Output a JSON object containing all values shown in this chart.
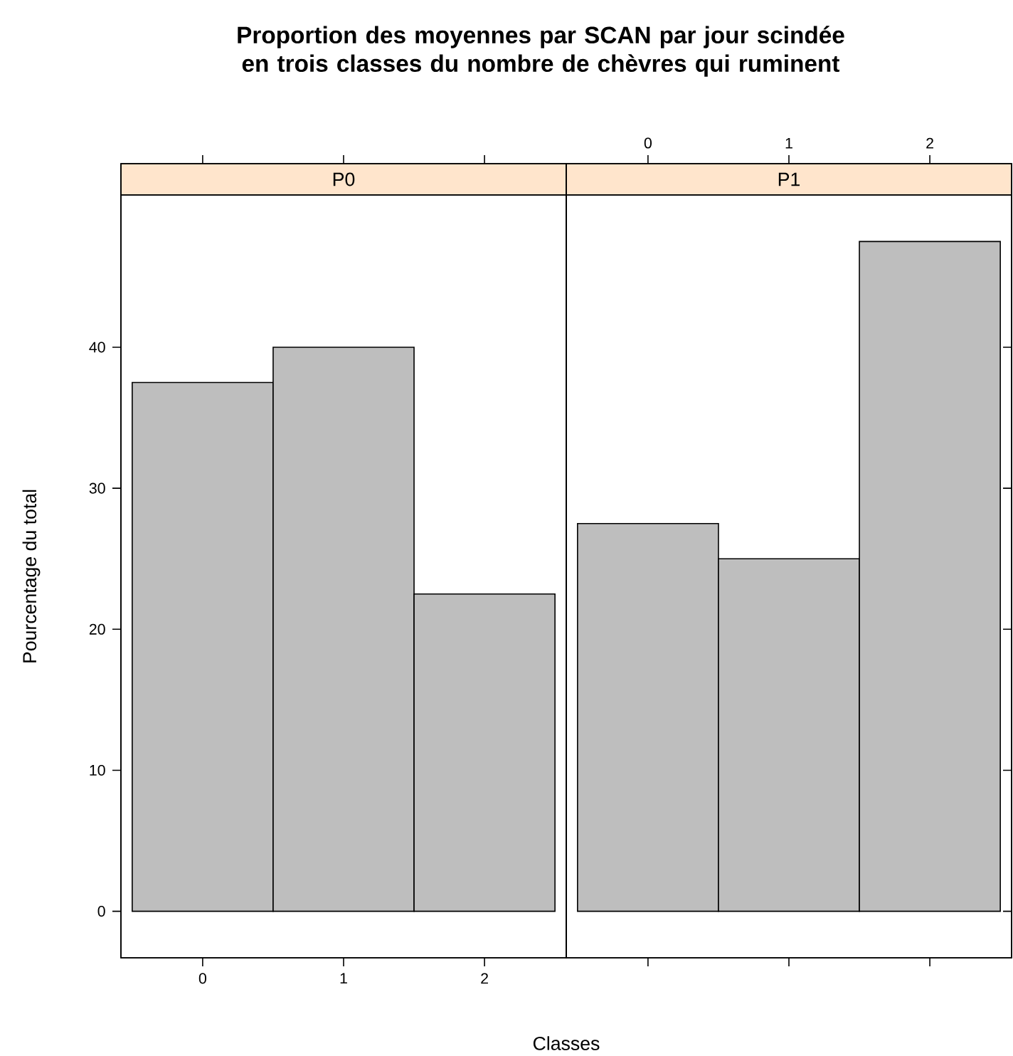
{
  "chart_data": [
    {
      "type": "bar",
      "title": "Proportion des moyennes par SCAN par jour scindée en trois classes du nombre de chèvres qui ruminent",
      "subtitle": "P0",
      "xlabel": "Classes",
      "ylabel": "Pourcentage du total",
      "categories": [
        "0",
        "1",
        "2"
      ],
      "values": [
        37.5,
        40,
        22.5
      ],
      "color": "#bebebe",
      "ylim": [
        -3.3,
        50.8
      ],
      "yticks": [
        0,
        10,
        20,
        30,
        40
      ]
    },
    {
      "type": "bar",
      "subtitle": "P1",
      "categories": [
        "0",
        "1",
        "2"
      ],
      "values": [
        27.5,
        25,
        47.5
      ],
      "color": "#bebebe",
      "ylim": [
        -3.3,
        50.8
      ],
      "yticks": [
        0,
        10,
        20,
        30,
        40
      ],
      "tick_labels": "x"
    }
  ]
}
